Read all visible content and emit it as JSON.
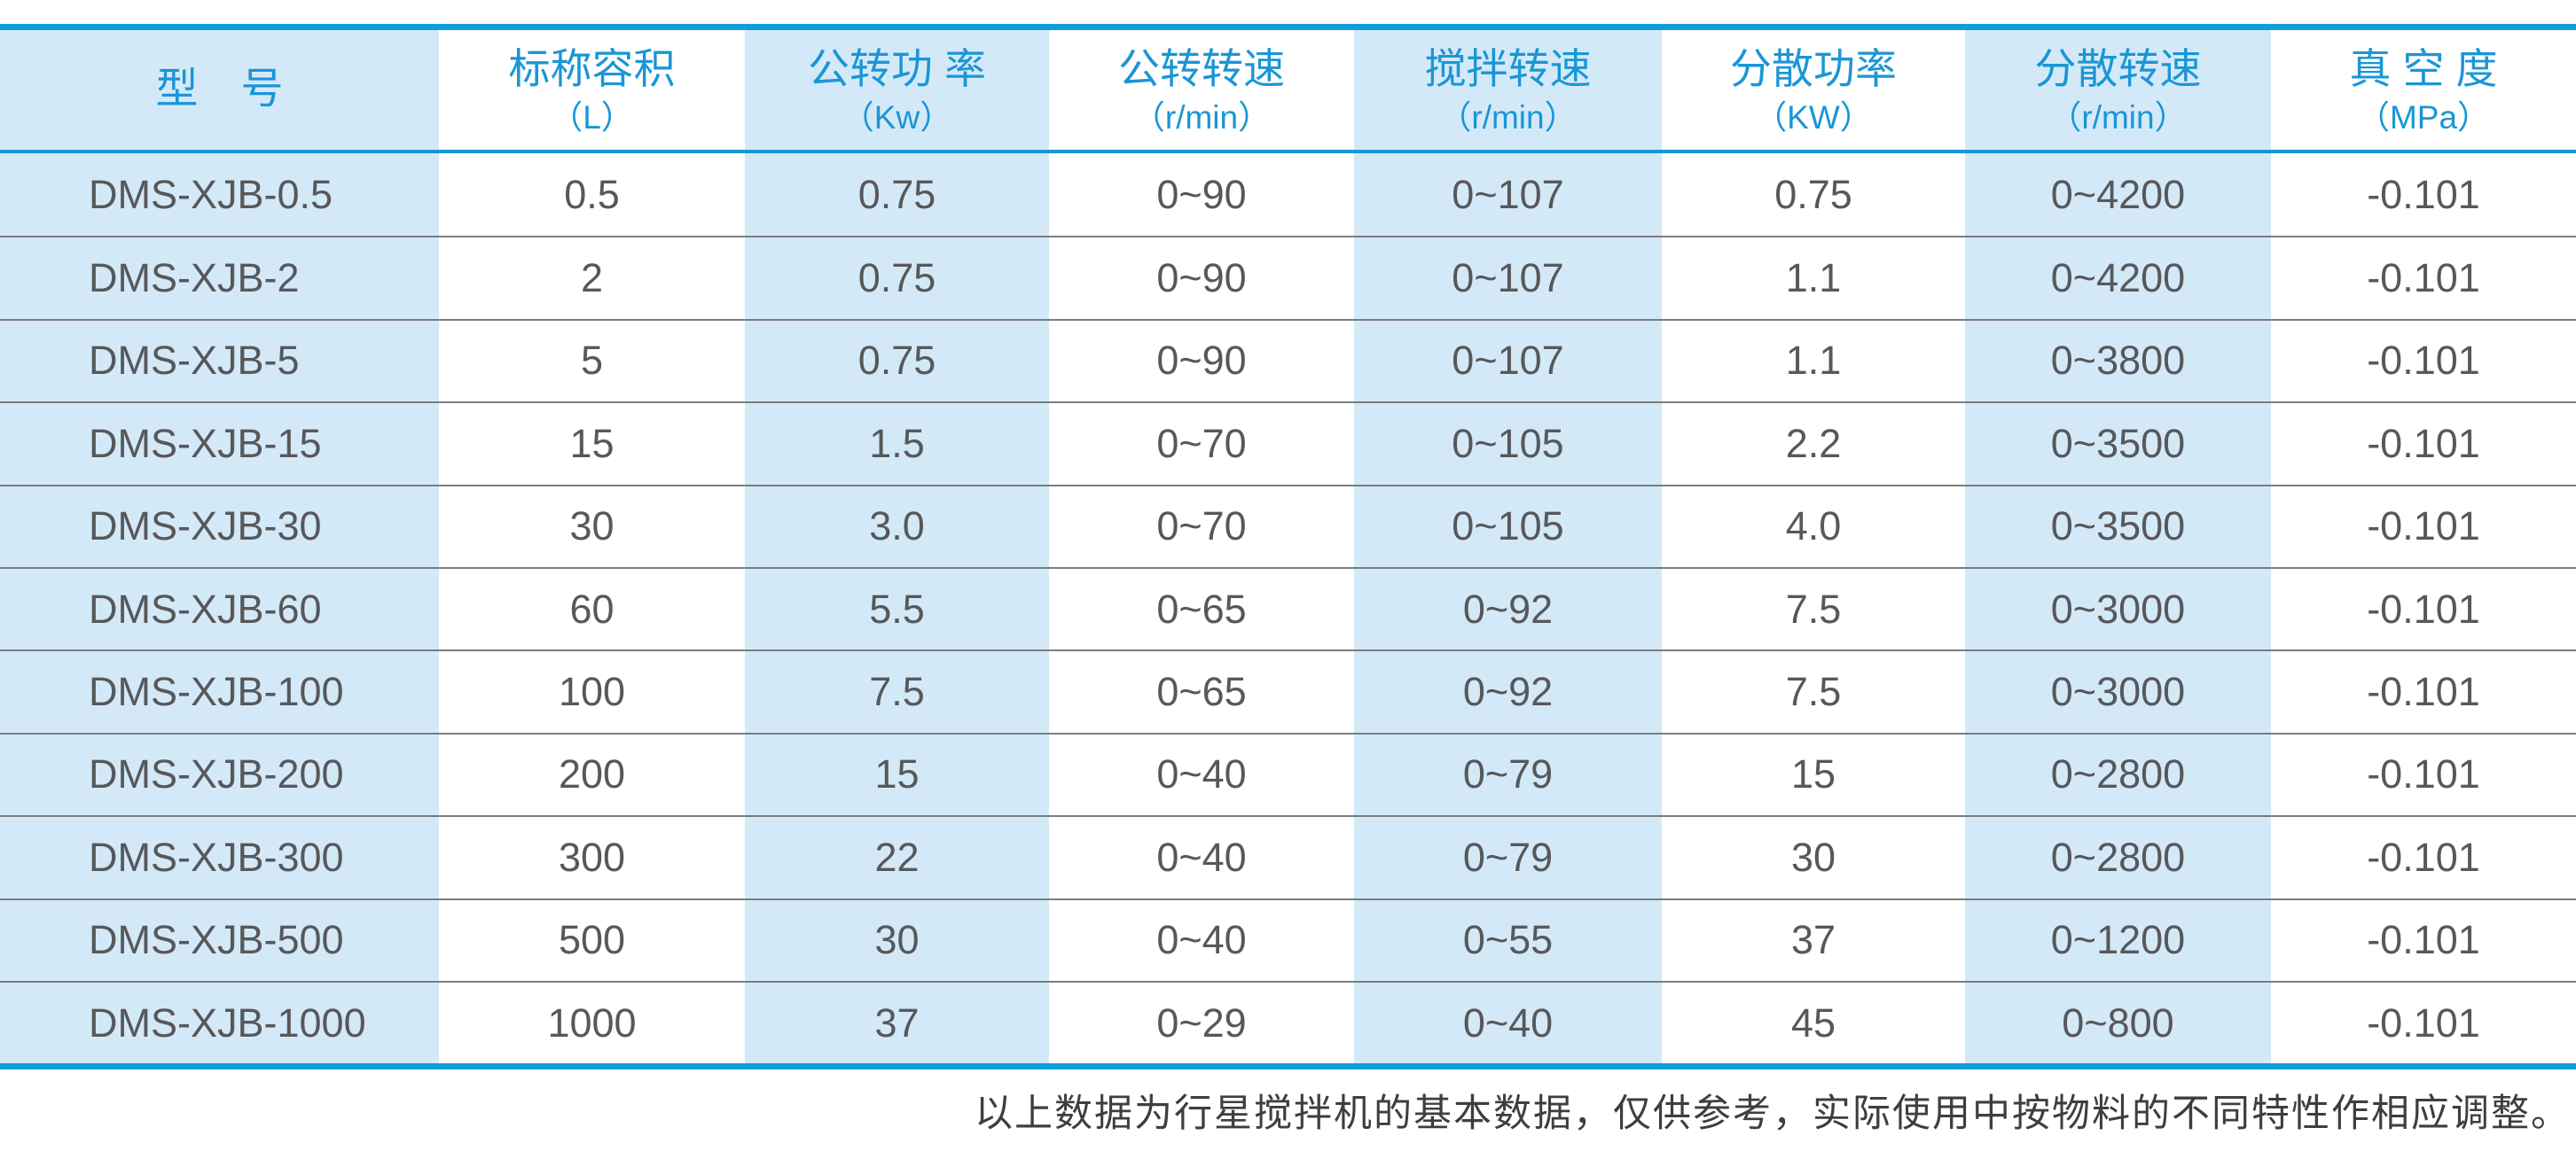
{
  "table": {
    "columns": [
      {
        "label": "型　号",
        "unit": ""
      },
      {
        "label": "标称容积",
        "unit": "（L）"
      },
      {
        "label": "公转功 率",
        "unit": "（Kw）"
      },
      {
        "label": "公转转速",
        "unit": "（r/min）"
      },
      {
        "label": "搅拌转速",
        "unit": "（r/min）"
      },
      {
        "label": "分散功率",
        "unit": "（KW）"
      },
      {
        "label": "分散转速",
        "unit": "（r/min）"
      },
      {
        "label": "真 空 度",
        "unit": "（MPa）"
      }
    ],
    "rows": [
      [
        "DMS-XJB-0.5",
        "0.5",
        "0.75",
        "0~90",
        "0~107",
        "0.75",
        "0~4200",
        "-0.101"
      ],
      [
        "DMS-XJB-2",
        "2",
        "0.75",
        "0~90",
        "0~107",
        "1.1",
        "0~4200",
        "-0.101"
      ],
      [
        "DMS-XJB-5",
        "5",
        "0.75",
        "0~90",
        "0~107",
        "1.1",
        "0~3800",
        "-0.101"
      ],
      [
        "DMS-XJB-15",
        "15",
        "1.5",
        "0~70",
        "0~105",
        "2.2",
        "0~3500",
        "-0.101"
      ],
      [
        "DMS-XJB-30",
        "30",
        "3.0",
        "0~70",
        "0~105",
        "4.0",
        "0~3500",
        "-0.101"
      ],
      [
        "DMS-XJB-60",
        "60",
        "5.5",
        "0~65",
        "0~92",
        "7.5",
        "0~3000",
        "-0.101"
      ],
      [
        "DMS-XJB-100",
        "100",
        "7.5",
        "0~65",
        "0~92",
        "7.5",
        "0~3000",
        "-0.101"
      ],
      [
        "DMS-XJB-200",
        "200",
        "15",
        "0~40",
        "0~79",
        "15",
        "0~2800",
        "-0.101"
      ],
      [
        "DMS-XJB-300",
        "300",
        "22",
        "0~40",
        "0~79",
        "30",
        "0~2800",
        "-0.101"
      ],
      [
        "DMS-XJB-500",
        "500",
        "30",
        "0~40",
        "0~55",
        "37",
        "0~1200",
        "-0.101"
      ],
      [
        "DMS-XJB-1000",
        "1000",
        "37",
        "0~29",
        "0~40",
        "45",
        "0~800",
        "-0.101"
      ]
    ],
    "footnote": "以上数据为行星搅拌机的基本数据，仅供参考，实际使用中按物料的不同特性作相应调整。"
  },
  "colors": {
    "accent_line": "#0f9cdd",
    "header_text": "#1a96d6",
    "column_stripe": "#d4e9f8",
    "data_text": "#57585a",
    "row_divider": "#7b7c7e",
    "footnote_text": "#3d3e40"
  }
}
